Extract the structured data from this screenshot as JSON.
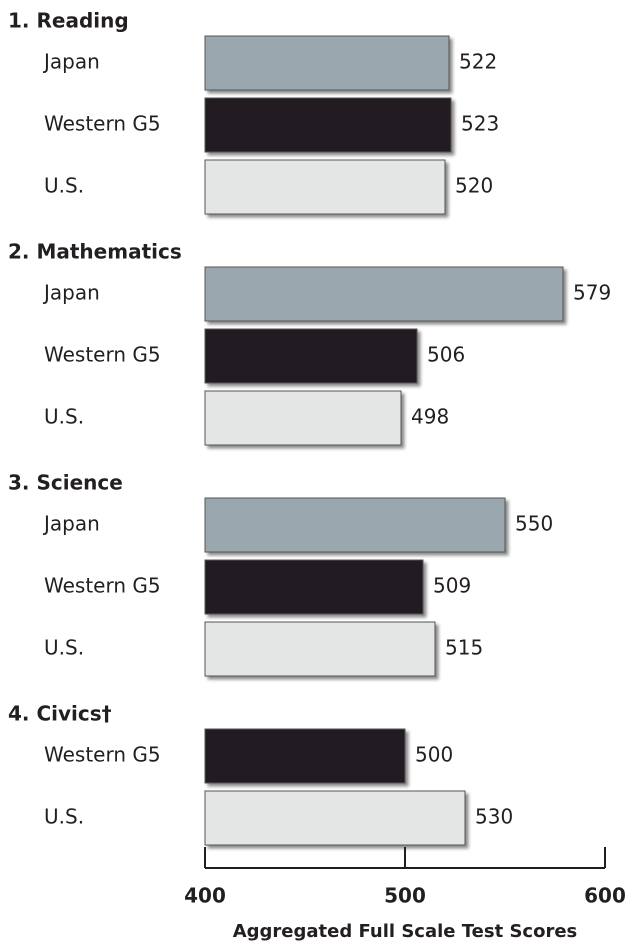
{
  "chart_data": {
    "type": "bar",
    "groups": [
      {
        "title": "1. Reading",
        "categories": [
          "Japan",
          "Western G5",
          "U.S."
        ],
        "values": [
          522,
          523,
          520
        ],
        "colors": [
          "#9aa7ae",
          "#231f20",
          "#e4e6e6"
        ]
      },
      {
        "title": "2. Mathematics",
        "categories": [
          "Japan",
          "Western G5",
          "U.S."
        ],
        "values": [
          579,
          506,
          498
        ],
        "colors": [
          "#9aa7ae",
          "#231f20",
          "#e4e6e6"
        ]
      },
      {
        "title": "3. Science",
        "categories": [
          "Japan",
          "Western G5",
          "U.S."
        ],
        "values": [
          550,
          509,
          515
        ],
        "colors": [
          "#9aa7ae",
          "#231f20",
          "#e4e6e6"
        ]
      },
      {
        "title": "4. Civics†",
        "categories": [
          "Western G5",
          "U.S."
        ],
        "values": [
          500,
          530
        ],
        "colors": [
          "#231f20",
          "#e4e6e6"
        ]
      }
    ],
    "xlim": [
      400,
      600
    ],
    "xticks": [
      400,
      500,
      600
    ],
    "xlabel": "Aggregated Full Scale Test Scores"
  }
}
